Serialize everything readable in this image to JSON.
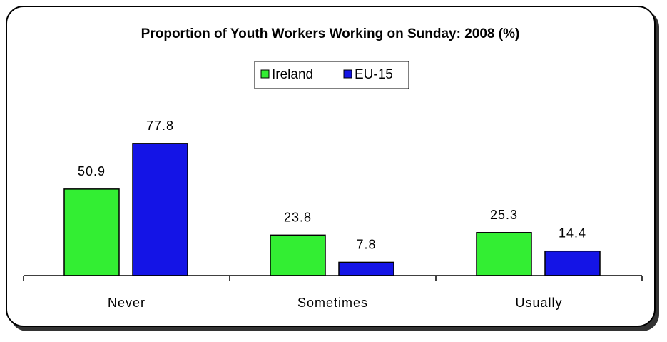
{
  "chart_data": {
    "type": "bar",
    "title": "Proportion of Youth Workers Working on Sunday: 2008 (%)",
    "categories": [
      "Never",
      "Sometimes",
      "Usually"
    ],
    "series": [
      {
        "name": "Ireland",
        "values": [
          50.9,
          23.8,
          25.3
        ],
        "color": "#33ee33"
      },
      {
        "name": "EU-15",
        "values": [
          77.8,
          7.8,
          14.4
        ],
        "color": "#1414e6"
      }
    ],
    "xlabel": "",
    "ylabel": "",
    "ylim": [
      0,
      100
    ],
    "grid": false,
    "legend_position": "top-center",
    "data_labels": true
  }
}
